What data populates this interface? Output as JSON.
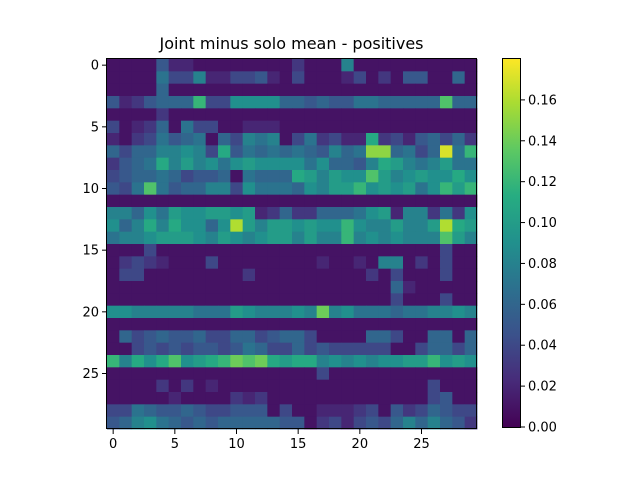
{
  "chart_data": {
    "type": "heatmap",
    "title": "Joint minus solo mean - positives",
    "xlabel": "",
    "ylabel": "",
    "shape": [
      30,
      30
    ],
    "x_ticks": [
      0,
      5,
      10,
      15,
      20,
      25
    ],
    "y_ticks": [
      0,
      5,
      10,
      15,
      20,
      25
    ],
    "colormap": "viridis",
    "colorbar": {
      "min": 0.0,
      "max": 0.18,
      "ticks": [
        0.0,
        0.02,
        0.04,
        0.06,
        0.08,
        0.1,
        0.12,
        0.14,
        0.16
      ]
    },
    "values": [
      [
        0.01,
        0.01,
        0.01,
        0.01,
        0.05,
        0.02,
        0.02,
        0.01,
        0.01,
        0.01,
        0.01,
        0.01,
        0.01,
        0.01,
        0.01,
        0.03,
        0.01,
        0.01,
        0.01,
        0.08,
        0.01,
        0.01,
        0.01,
        0.01,
        0.01,
        0.01,
        0.01,
        0.01,
        0.01,
        0.01
      ],
      [
        0.01,
        0.01,
        0.01,
        0.01,
        0.07,
        0.04,
        0.04,
        0.08,
        0.02,
        0.02,
        0.04,
        0.04,
        0.05,
        0.02,
        0.01,
        0.04,
        0.01,
        0.01,
        0.01,
        0.02,
        0.04,
        0.01,
        0.03,
        0.01,
        0.05,
        0.05,
        0.01,
        0.01,
        0.06,
        0.01
      ],
      [
        0.01,
        0.01,
        0.01,
        0.01,
        0.06,
        0.01,
        0.01,
        0.01,
        0.01,
        0.01,
        0.01,
        0.01,
        0.01,
        0.01,
        0.01,
        0.01,
        0.01,
        0.01,
        0.01,
        0.01,
        0.01,
        0.01,
        0.01,
        0.01,
        0.01,
        0.01,
        0.01,
        0.01,
        0.01,
        0.01
      ],
      [
        0.05,
        0.02,
        0.03,
        0.05,
        0.06,
        0.06,
        0.06,
        0.12,
        0.04,
        0.04,
        0.09,
        0.09,
        0.09,
        0.09,
        0.06,
        0.06,
        0.05,
        0.06,
        0.05,
        0.05,
        0.07,
        0.07,
        0.06,
        0.06,
        0.06,
        0.06,
        0.06,
        0.13,
        0.06,
        0.06
      ],
      [
        0.01,
        0.01,
        0.01,
        0.01,
        0.03,
        0.01,
        0.01,
        0.01,
        0.01,
        0.01,
        0.01,
        0.01,
        0.01,
        0.01,
        0.01,
        0.01,
        0.01,
        0.01,
        0.01,
        0.01,
        0.01,
        0.01,
        0.01,
        0.01,
        0.01,
        0.01,
        0.01,
        0.01,
        0.01,
        0.01
      ],
      [
        0.04,
        0.01,
        0.02,
        0.03,
        0.06,
        0.01,
        0.07,
        0.04,
        0.04,
        0.01,
        0.01,
        0.02,
        0.02,
        0.02,
        0.01,
        0.01,
        0.01,
        0.01,
        0.01,
        0.01,
        0.01,
        0.01,
        0.01,
        0.01,
        0.01,
        0.01,
        0.01,
        0.01,
        0.01,
        0.01
      ],
      [
        0.02,
        0.01,
        0.03,
        0.04,
        0.07,
        0.05,
        0.06,
        0.07,
        0.01,
        0.06,
        0.04,
        0.08,
        0.07,
        0.08,
        0.01,
        0.04,
        0.07,
        0.03,
        0.04,
        0.02,
        0.02,
        0.11,
        0.03,
        0.04,
        0.02,
        0.05,
        0.06,
        0.04,
        0.06,
        0.03
      ],
      [
        0.06,
        0.04,
        0.06,
        0.06,
        0.08,
        0.08,
        0.09,
        0.08,
        0.04,
        0.11,
        0.05,
        0.07,
        0.06,
        0.07,
        0.06,
        0.07,
        0.06,
        0.05,
        0.08,
        0.06,
        0.07,
        0.15,
        0.15,
        0.06,
        0.07,
        0.04,
        0.06,
        0.17,
        0.07,
        0.12
      ],
      [
        0.03,
        0.05,
        0.06,
        0.07,
        0.11,
        0.08,
        0.1,
        0.08,
        0.09,
        0.07,
        0.09,
        0.1,
        0.09,
        0.09,
        0.09,
        0.09,
        0.07,
        0.09,
        0.06,
        0.06,
        0.05,
        0.08,
        0.11,
        0.1,
        0.08,
        0.07,
        0.08,
        0.1,
        0.07,
        0.07
      ],
      [
        0.04,
        0.05,
        0.06,
        0.06,
        0.07,
        0.06,
        0.04,
        0.05,
        0.05,
        0.06,
        0.01,
        0.07,
        0.06,
        0.06,
        0.06,
        0.11,
        0.1,
        0.08,
        0.1,
        0.09,
        0.09,
        0.13,
        0.1,
        0.08,
        0.09,
        0.1,
        0.09,
        0.09,
        0.11,
        0.09
      ],
      [
        0.05,
        0.04,
        0.07,
        0.13,
        0.07,
        0.05,
        0.06,
        0.06,
        0.08,
        0.08,
        0.04,
        0.09,
        0.07,
        0.07,
        0.07,
        0.06,
        0.09,
        0.08,
        0.1,
        0.1,
        0.12,
        0.09,
        0.1,
        0.09,
        0.1,
        0.07,
        0.09,
        0.12,
        0.1,
        0.12
      ],
      [
        0.01,
        0.01,
        0.01,
        0.01,
        0.01,
        0.01,
        0.01,
        0.01,
        0.01,
        0.01,
        0.01,
        0.01,
        0.01,
        0.01,
        0.01,
        0.01,
        0.01,
        0.01,
        0.01,
        0.01,
        0.01,
        0.01,
        0.01,
        0.01,
        0.01,
        0.01,
        0.01,
        0.01,
        0.01,
        0.01
      ],
      [
        0.08,
        0.08,
        0.06,
        0.09,
        0.07,
        0.1,
        0.09,
        0.09,
        0.1,
        0.1,
        0.09,
        0.1,
        0.02,
        0.03,
        0.06,
        0.03,
        0.03,
        0.06,
        0.06,
        0.06,
        0.07,
        0.09,
        0.1,
        0.02,
        0.08,
        0.08,
        0.03,
        0.07,
        0.03,
        0.09
      ],
      [
        0.09,
        0.06,
        0.08,
        0.11,
        0.08,
        0.11,
        0.09,
        0.09,
        0.06,
        0.09,
        0.16,
        0.1,
        0.08,
        0.1,
        0.1,
        0.09,
        0.1,
        0.09,
        0.09,
        0.12,
        0.09,
        0.08,
        0.08,
        0.1,
        0.08,
        0.08,
        0.1,
        0.16,
        0.11,
        0.1
      ],
      [
        0.07,
        0.08,
        0.08,
        0.09,
        0.1,
        0.1,
        0.1,
        0.09,
        0.08,
        0.1,
        0.09,
        0.08,
        0.09,
        0.1,
        0.1,
        0.08,
        0.1,
        0.08,
        0.08,
        0.12,
        0.08,
        0.09,
        0.08,
        0.09,
        0.08,
        0.08,
        0.08,
        0.13,
        0.1,
        0.08
      ],
      [
        0.01,
        0.01,
        0.01,
        0.04,
        0.01,
        0.01,
        0.01,
        0.01,
        0.01,
        0.01,
        0.01,
        0.01,
        0.01,
        0.01,
        0.01,
        0.01,
        0.01,
        0.01,
        0.01,
        0.01,
        0.01,
        0.01,
        0.01,
        0.01,
        0.01,
        0.01,
        0.01,
        0.04,
        0.01,
        0.01
      ],
      [
        0.01,
        0.03,
        0.04,
        0.03,
        0.02,
        0.01,
        0.01,
        0.01,
        0.04,
        0.01,
        0.01,
        0.01,
        0.01,
        0.01,
        0.01,
        0.01,
        0.01,
        0.02,
        0.01,
        0.01,
        0.02,
        0.01,
        0.08,
        0.08,
        0.01,
        0.03,
        0.01,
        0.04,
        0.01,
        0.01
      ],
      [
        0.01,
        0.04,
        0.04,
        0.01,
        0.01,
        0.01,
        0.01,
        0.01,
        0.01,
        0.01,
        0.01,
        0.03,
        0.01,
        0.01,
        0.01,
        0.01,
        0.01,
        0.01,
        0.01,
        0.01,
        0.01,
        0.03,
        0.01,
        0.04,
        0.01,
        0.01,
        0.01,
        0.04,
        0.01,
        0.01
      ],
      [
        0.01,
        0.01,
        0.01,
        0.01,
        0.01,
        0.01,
        0.01,
        0.01,
        0.01,
        0.01,
        0.01,
        0.01,
        0.01,
        0.01,
        0.01,
        0.01,
        0.01,
        0.01,
        0.01,
        0.01,
        0.01,
        0.01,
        0.01,
        0.06,
        0.02,
        0.01,
        0.01,
        0.01,
        0.01,
        0.01
      ],
      [
        0.01,
        0.01,
        0.01,
        0.01,
        0.01,
        0.01,
        0.01,
        0.01,
        0.01,
        0.01,
        0.01,
        0.01,
        0.01,
        0.01,
        0.01,
        0.01,
        0.01,
        0.01,
        0.01,
        0.01,
        0.01,
        0.01,
        0.01,
        0.04,
        0.01,
        0.01,
        0.01,
        0.04,
        0.01,
        0.01
      ],
      [
        0.09,
        0.09,
        0.08,
        0.08,
        0.08,
        0.08,
        0.08,
        0.07,
        0.07,
        0.07,
        0.1,
        0.09,
        0.08,
        0.08,
        0.08,
        0.09,
        0.08,
        0.14,
        0.08,
        0.09,
        0.07,
        0.07,
        0.07,
        0.06,
        0.07,
        0.07,
        0.08,
        0.08,
        0.09,
        0.08
      ],
      [
        0.01,
        0.01,
        0.01,
        0.01,
        0.01,
        0.01,
        0.01,
        0.01,
        0.01,
        0.01,
        0.01,
        0.01,
        0.01,
        0.01,
        0.01,
        0.01,
        0.01,
        0.01,
        0.01,
        0.01,
        0.01,
        0.01,
        0.01,
        0.01,
        0.01,
        0.01,
        0.01,
        0.01,
        0.01,
        0.01
      ],
      [
        0.01,
        0.06,
        0.04,
        0.05,
        0.06,
        0.05,
        0.05,
        0.06,
        0.04,
        0.04,
        0.06,
        0.06,
        0.04,
        0.05,
        0.06,
        0.06,
        0.04,
        0.01,
        0.01,
        0.01,
        0.01,
        0.06,
        0.06,
        0.04,
        0.01,
        0.01,
        0.06,
        0.06,
        0.01,
        0.06
      ],
      [
        0.01,
        0.01,
        0.04,
        0.05,
        0.04,
        0.05,
        0.04,
        0.05,
        0.05,
        0.04,
        0.05,
        0.07,
        0.06,
        0.04,
        0.04,
        0.06,
        0.04,
        0.05,
        0.04,
        0.04,
        0.04,
        0.04,
        0.04,
        0.01,
        0.01,
        0.04,
        0.06,
        0.06,
        0.04,
        0.06
      ],
      [
        0.12,
        0.08,
        0.11,
        0.09,
        0.11,
        0.13,
        0.09,
        0.1,
        0.11,
        0.12,
        0.14,
        0.13,
        0.14,
        0.11,
        0.1,
        0.11,
        0.11,
        0.08,
        0.09,
        0.08,
        0.09,
        0.08,
        0.09,
        0.09,
        0.1,
        0.1,
        0.12,
        0.09,
        0.1,
        0.09
      ],
      [
        0.01,
        0.01,
        0.01,
        0.01,
        0.01,
        0.01,
        0.01,
        0.01,
        0.01,
        0.01,
        0.01,
        0.01,
        0.01,
        0.01,
        0.01,
        0.01,
        0.01,
        0.04,
        0.01,
        0.01,
        0.01,
        0.01,
        0.01,
        0.01,
        0.01,
        0.01,
        0.01,
        0.01,
        0.01,
        0.01
      ],
      [
        0.01,
        0.01,
        0.01,
        0.01,
        0.03,
        0.01,
        0.03,
        0.01,
        0.02,
        0.01,
        0.01,
        0.01,
        0.01,
        0.01,
        0.01,
        0.01,
        0.01,
        0.01,
        0.01,
        0.01,
        0.01,
        0.01,
        0.01,
        0.01,
        0.01,
        0.01,
        0.04,
        0.01,
        0.01,
        0.01
      ],
      [
        0.01,
        0.01,
        0.01,
        0.01,
        0.01,
        0.02,
        0.01,
        0.01,
        0.01,
        0.01,
        0.03,
        0.02,
        0.03,
        0.01,
        0.01,
        0.01,
        0.01,
        0.01,
        0.01,
        0.01,
        0.01,
        0.01,
        0.01,
        0.01,
        0.01,
        0.01,
        0.04,
        0.05,
        0.01,
        0.01
      ],
      [
        0.04,
        0.04,
        0.07,
        0.06,
        0.05,
        0.05,
        0.06,
        0.05,
        0.04,
        0.04,
        0.05,
        0.05,
        0.05,
        0.01,
        0.04,
        0.01,
        0.01,
        0.02,
        0.02,
        0.02,
        0.03,
        0.04,
        0.01,
        0.05,
        0.03,
        0.04,
        0.06,
        0.05,
        0.04,
        0.04
      ],
      [
        0.05,
        0.06,
        0.08,
        0.09,
        0.07,
        0.06,
        0.05,
        0.06,
        0.05,
        0.06,
        0.06,
        0.06,
        0.06,
        0.06,
        0.05,
        0.05,
        0.01,
        0.03,
        0.04,
        0.02,
        0.04,
        0.05,
        0.04,
        0.06,
        0.08,
        0.06,
        0.08,
        0.06,
        0.05,
        0.03
      ]
    ]
  }
}
